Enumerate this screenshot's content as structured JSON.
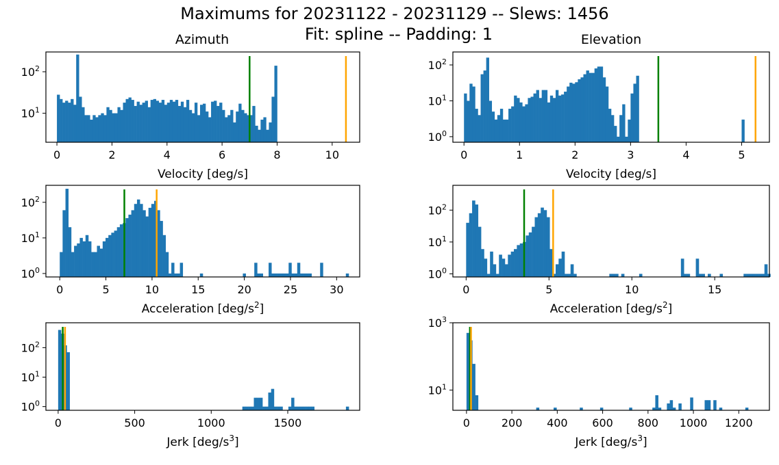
{
  "figure": {
    "title_line1": "Maximums for 20231122 - 20231129 -- Slews: 1456",
    "title_line2": "Fit: spline -- Padding: 1",
    "column_titles": [
      "Azimuth",
      "Elevation"
    ]
  },
  "colors": {
    "bars": "#1f77b4",
    "green_line": "#008000",
    "orange_line": "#ffa500",
    "axes": "#000000"
  },
  "chart_data": [
    {
      "id": "az-velocity",
      "type": "bar",
      "scale_y": "log",
      "title": "Azimuth",
      "xlabel": "Velocity [deg/s]",
      "xlim": [
        -0.4,
        11.0
      ],
      "ylim": [
        2.0,
        300
      ],
      "xticks": [
        0,
        2,
        4,
        6,
        8,
        10
      ],
      "yticks": [
        10,
        100
      ],
      "ytick_labels": [
        "10^1",
        "10^2"
      ],
      "bin_start": 0.0,
      "bin_width": 0.1,
      "values": [
        28,
        22,
        18,
        20,
        18,
        22,
        16,
        260,
        25,
        14,
        9,
        9,
        7,
        9,
        8,
        9,
        10,
        9,
        14,
        12,
        10,
        10,
        14,
        12,
        18,
        22,
        24,
        21,
        15,
        19,
        16,
        18,
        20,
        14,
        21,
        22,
        20,
        18,
        21,
        16,
        18,
        21,
        19,
        21,
        15,
        19,
        14,
        21,
        12,
        10,
        18,
        9,
        16,
        17,
        11,
        8,
        19,
        20,
        15,
        18,
        12,
        8,
        9,
        12,
        6,
        11,
        17,
        12,
        10,
        9,
        9,
        15,
        5,
        4,
        7,
        8,
        4,
        6,
        25,
        140
      ],
      "vlines": [
        {
          "x": 7.0,
          "color": "green"
        },
        {
          "x": 10.5,
          "color": "orange"
        }
      ]
    },
    {
      "id": "el-velocity",
      "type": "bar",
      "scale_y": "log",
      "title": "Elevation",
      "xlabel": "Velocity [deg/s]",
      "xlim": [
        -0.2,
        5.5
      ],
      "ylim": [
        0.7,
        230
      ],
      "xticks": [
        0,
        1,
        2,
        3,
        4,
        5
      ],
      "yticks": [
        1,
        10,
        100
      ],
      "ytick_labels": [
        "10^0",
        "10^1",
        "10^2"
      ],
      "bin_start": 0.0,
      "bin_width": 0.05,
      "values": [
        16,
        10,
        30,
        25,
        6,
        4,
        55,
        70,
        160,
        10,
        5,
        3,
        4,
        6,
        3,
        3,
        6,
        7,
        14,
        12,
        9,
        7,
        8,
        12,
        13,
        16,
        20,
        12,
        20,
        20,
        9,
        14,
        12,
        20,
        14,
        15,
        18,
        25,
        32,
        30,
        33,
        40,
        45,
        55,
        70,
        60,
        60,
        80,
        90,
        90,
        45,
        25,
        6,
        4,
        2,
        1,
        4,
        8,
        1,
        3,
        16,
        30,
        50,
        0,
        0,
        0,
        0,
        0,
        0,
        0,
        0,
        0,
        0,
        0,
        0,
        0,
        0,
        0,
        0,
        0,
        0,
        0,
        0,
        0,
        0,
        0,
        0,
        0,
        0,
        0,
        0,
        0,
        0,
        0,
        0,
        0,
        0,
        0,
        0,
        0,
        3
      ],
      "vlines": [
        {
          "x": 3.5,
          "color": "green"
        },
        {
          "x": 5.25,
          "color": "orange"
        }
      ]
    },
    {
      "id": "az-acceleration",
      "type": "bar",
      "scale_y": "log",
      "title": "",
      "xlabel": "Acceleration [deg/s²]",
      "xlim": [
        -1.5,
        32.5
      ],
      "ylim": [
        0.8,
        300
      ],
      "xticks": [
        0,
        5,
        10,
        15,
        20,
        25,
        30
      ],
      "yticks": [
        1,
        10,
        100
      ],
      "ytick_labels": [
        "10^0",
        "10^1",
        "10^2"
      ],
      "bin_start": 0.0,
      "bin_width": 0.31,
      "values": [
        4,
        60,
        240,
        20,
        4,
        6,
        7,
        10,
        8,
        12,
        8,
        4,
        4,
        6,
        5,
        8,
        10,
        12,
        14,
        16,
        20,
        24,
        26,
        36,
        45,
        60,
        90,
        120,
        90,
        60,
        40,
        70,
        90,
        110,
        60,
        30,
        12,
        4,
        1,
        2,
        1,
        1,
        2,
        0,
        0,
        0,
        0,
        0,
        0,
        1,
        0,
        0,
        0,
        0,
        0,
        0,
        0,
        0,
        0,
        0,
        0,
        0,
        0,
        0,
        1,
        0,
        0,
        0,
        2,
        1,
        1,
        0,
        0,
        2,
        1,
        1,
        1,
        1,
        1,
        1,
        2,
        1,
        1,
        2,
        1,
        1,
        1,
        1,
        0,
        0,
        0,
        2,
        0,
        0,
        0,
        0,
        0,
        0,
        0,
        0,
        1
      ],
      "vlines": [
        {
          "x": 7.0,
          "color": "green"
        },
        {
          "x": 10.5,
          "color": "orange"
        }
      ]
    },
    {
      "id": "el-acceleration",
      "type": "bar",
      "scale_y": "log",
      "title": "",
      "xlabel": "Acceleration [deg/s²]",
      "xlim": [
        -0.8,
        18.3
      ],
      "ylim": [
        0.8,
        600
      ],
      "xticks": [
        0,
        5,
        10,
        15
      ],
      "yticks": [
        1,
        10,
        100
      ],
      "ytick_labels": [
        "10^0",
        "10^1",
        "10^2"
      ],
      "bin_start": 0.0,
      "bin_width": 0.18,
      "values": [
        40,
        80,
        200,
        150,
        30,
        6,
        3,
        1,
        5,
        2,
        1,
        4,
        3,
        2,
        4,
        5,
        6,
        8,
        9,
        10,
        16,
        20,
        30,
        60,
        80,
        120,
        100,
        60,
        6,
        1,
        2,
        3,
        5,
        1,
        1,
        2,
        1,
        0,
        0,
        0,
        0,
        0,
        0,
        0,
        0,
        0,
        0,
        0,
        1,
        1,
        1,
        0,
        1,
        0,
        0,
        0,
        0,
        0,
        1,
        0,
        0,
        0,
        0,
        0,
        0,
        0,
        0,
        0,
        0,
        0,
        0,
        0,
        3,
        1,
        1,
        0,
        0,
        3,
        1,
        1,
        0,
        1,
        0,
        0,
        0,
        1,
        0,
        0,
        0,
        0,
        0,
        0,
        0,
        1,
        1,
        1,
        1,
        1,
        1,
        1,
        2,
        1
      ],
      "vlines": [
        {
          "x": 3.5,
          "color": "green"
        },
        {
          "x": 5.25,
          "color": "orange"
        }
      ]
    },
    {
      "id": "az-jerk",
      "type": "bar",
      "scale_y": "log",
      "title": "",
      "xlabel": "Jerk [deg/s³]",
      "xlim": [
        -80,
        1970
      ],
      "ylim": [
        0.75,
        700
      ],
      "xticks": [
        0,
        500,
        1000,
        1500
      ],
      "yticks": [
        1,
        10,
        100
      ],
      "ytick_labels": [
        "10^0",
        "10^1",
        "10^2"
      ],
      "bin_start": 0.0,
      "bin_width": 18.8,
      "values": [
        400,
        300,
        120,
        70,
        0,
        0,
        0,
        0,
        0,
        0,
        0,
        0,
        0,
        0,
        0,
        0,
        0,
        0,
        0,
        0,
        0,
        0,
        0,
        0,
        0,
        0,
        0,
        0,
        0,
        0,
        0,
        0,
        0,
        0,
        0,
        0,
        0,
        0,
        0,
        0,
        0,
        0,
        0,
        0,
        0,
        0,
        0,
        0,
        0,
        0,
        0,
        0,
        0,
        0,
        0,
        0,
        0,
        0,
        0,
        0,
        0,
        0,
        0,
        0,
        1,
        1,
        1,
        1,
        2,
        2,
        2,
        1,
        1,
        3,
        4,
        1,
        1,
        1,
        0,
        0,
        1,
        2,
        1,
        1,
        1,
        1,
        1,
        1,
        1,
        0,
        0,
        0,
        0,
        0,
        0,
        0,
        0,
        0,
        0,
        0,
        1
      ],
      "vlines": [
        {
          "x": 30,
          "color": "green"
        },
        {
          "x": 45,
          "color": "orange"
        }
      ]
    },
    {
      "id": "el-jerk",
      "type": "bar",
      "scale_y": "log",
      "title": "",
      "xlabel": "Jerk [deg/s³]",
      "xlim": [
        -60,
        1335
      ],
      "ylim": [
        2.5,
        1000
      ],
      "xticks": [
        0,
        200,
        400,
        600,
        800,
        1000,
        1200
      ],
      "yticks": [
        10,
        1000
      ],
      "ytick_labels": [
        "10^1",
        "10^3"
      ],
      "bin_start": 0.0,
      "bin_width": 12.8,
      "values": [
        500,
        300,
        60,
        7,
        0,
        0,
        0,
        0,
        0,
        0,
        0,
        0,
        0,
        0,
        0,
        0,
        0,
        0,
        0,
        0,
        0,
        0,
        0,
        0,
        3,
        0,
        0,
        0,
        0,
        0,
        3,
        0,
        0,
        0,
        0,
        0,
        0,
        0,
        0,
        3,
        0,
        0,
        0,
        0,
        0,
        0,
        3,
        0,
        0,
        0,
        0,
        0,
        0,
        0,
        0,
        0,
        3,
        0,
        0,
        0,
        0,
        0,
        0,
        0,
        3,
        7,
        3,
        0,
        0,
        4,
        5,
        3,
        0,
        4,
        0,
        0,
        0,
        6,
        0,
        0,
        0,
        0,
        5,
        5,
        0,
        5,
        0,
        3,
        0,
        0,
        0,
        0,
        0,
        0,
        0,
        0,
        3,
        0,
        0,
        0,
        0
      ],
      "vlines": [
        {
          "x": 15,
          "color": "green"
        },
        {
          "x": 20,
          "color": "orange"
        }
      ]
    }
  ]
}
